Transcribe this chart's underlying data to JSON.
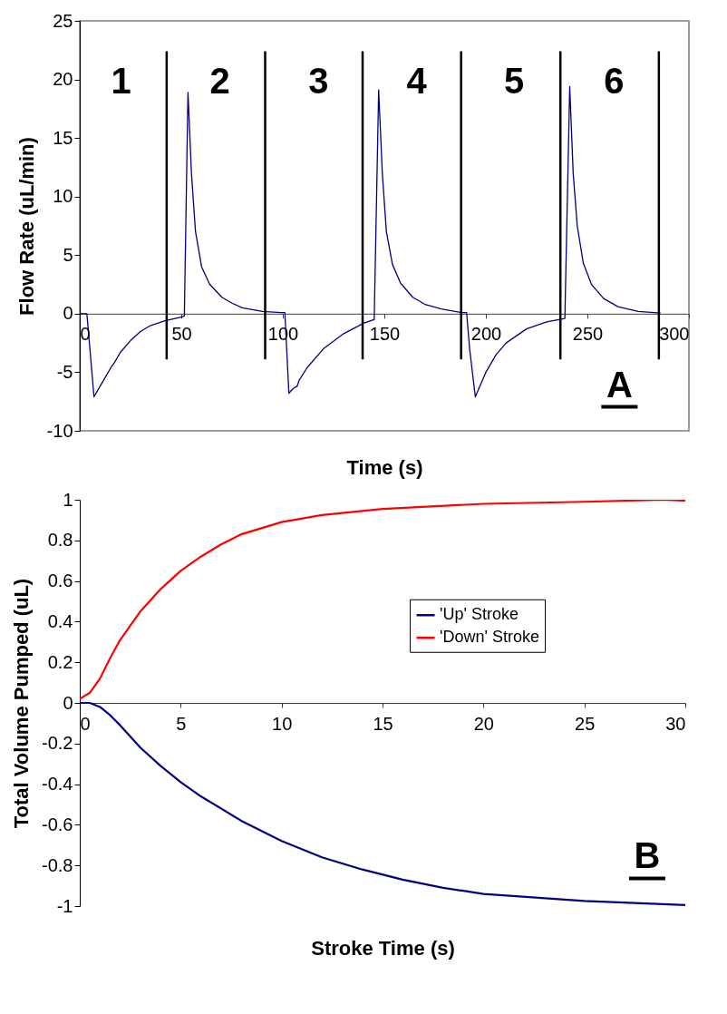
{
  "chart_data": [
    {
      "type": "line",
      "xlabel": "Time (s)",
      "ylabel": "Flow Rate (uL/min)",
      "xlim": [
        0,
        300
      ],
      "xticks": [
        0,
        50,
        100,
        150,
        200,
        250,
        300
      ],
      "ylim": [
        -10,
        25
      ],
      "yticks": [
        -10,
        -5,
        0,
        5,
        10,
        15,
        20,
        25
      ],
      "grid": false,
      "legend": false,
      "series": [
        {
          "color": "#000080",
          "x": [
            0,
            3.5,
            5,
            7,
            10,
            13,
            15.7,
            17,
            20,
            25,
            30,
            35,
            42,
            50,
            51.5,
            53.3,
            55,
            57,
            60,
            64,
            70,
            75,
            80,
            90,
            99,
            101,
            103,
            105,
            107,
            108,
            112,
            120,
            130,
            140,
            145,
            147.2,
            149,
            151,
            154,
            158,
            164,
            170,
            178,
            188,
            190.5,
            192,
            194.8,
            197,
            200,
            205,
            210,
            220,
            230,
            238.9,
            241.3,
            243,
            245,
            248,
            252,
            258,
            265,
            275,
            286
          ],
          "values": [
            0,
            0,
            -3,
            -7.1,
            -6.2,
            -5.3,
            -4.5,
            -4.2,
            -3.3,
            -2.3,
            -1.5,
            -1.0,
            -0.6,
            -0.3,
            -0.2,
            18.9,
            12,
            7,
            4,
            2.5,
            1.4,
            0.9,
            0.5,
            0.2,
            0.1,
            0.1,
            -6.8,
            -6.4,
            -6.2,
            -5.7,
            -4.6,
            -3.0,
            -1.7,
            -0.8,
            -0.5,
            19.1,
            12,
            7,
            4.2,
            2.6,
            1.4,
            0.8,
            0.4,
            0.1,
            0.1,
            -3,
            -7.1,
            -6.2,
            -5,
            -3.5,
            -2.5,
            -1.3,
            -0.7,
            -0.4,
            19.4,
            12,
            7.5,
            4.3,
            2.5,
            1.3,
            0.6,
            0.2,
            0.05
          ]
        }
      ],
      "ref_lines": [
        {
          "axis": "x",
          "value": 42.8,
          "color": "#000000"
        },
        {
          "axis": "x",
          "value": 91.3,
          "color": "#000000"
        },
        {
          "axis": "x",
          "value": 139.3,
          "color": "#000000"
        },
        {
          "axis": "x",
          "value": 187.8,
          "color": "#000000"
        },
        {
          "axis": "x",
          "value": 236.7,
          "color": "#000000"
        },
        {
          "axis": "x",
          "value": 285.2,
          "color": "#000000"
        }
      ],
      "annotations": [
        "1",
        "2",
        "3",
        "4",
        "5",
        "6",
        "A"
      ]
    },
    {
      "type": "line",
      "xlabel": "Stroke Time (s)",
      "ylabel": "Total Volume Pumped (uL)",
      "xlim": [
        0,
        30
      ],
      "xticks": [
        0,
        5,
        10,
        15,
        20,
        25,
        30
      ],
      "ylim": [
        -1,
        1
      ],
      "yticks": [
        -1,
        -0.8,
        -0.6,
        -0.4,
        -0.2,
        0,
        0.2,
        0.4,
        0.6,
        0.8,
        1
      ],
      "grid": false,
      "legend": "right",
      "series": [
        {
          "name": "'Up' Stroke",
          "color": "#000080",
          "x": [
            0,
            0.5,
            1,
            1.5,
            2,
            3,
            4,
            5,
            6,
            8,
            10,
            12,
            14,
            16,
            18,
            20,
            25,
            30
          ],
          "values": [
            0,
            0,
            -0.02,
            -0.06,
            -0.11,
            -0.22,
            -0.31,
            -0.39,
            -0.46,
            -0.58,
            -0.68,
            -0.76,
            -0.82,
            -0.87,
            -0.91,
            -0.94,
            -0.975,
            -0.995
          ]
        },
        {
          "name": "'Down' Stroke",
          "color": "#ff0000",
          "x": [
            0,
            0.5,
            1,
            1.5,
            2,
            3,
            4,
            5,
            6,
            7,
            8,
            10,
            12,
            15,
            20,
            25,
            29,
            30
          ],
          "values": [
            0.02,
            0.05,
            0.12,
            0.22,
            0.31,
            0.45,
            0.56,
            0.65,
            0.72,
            0.78,
            0.83,
            0.89,
            0.925,
            0.955,
            0.98,
            0.99,
            1.0,
            0.995
          ]
        }
      ],
      "annotations": [
        "B"
      ]
    }
  ]
}
